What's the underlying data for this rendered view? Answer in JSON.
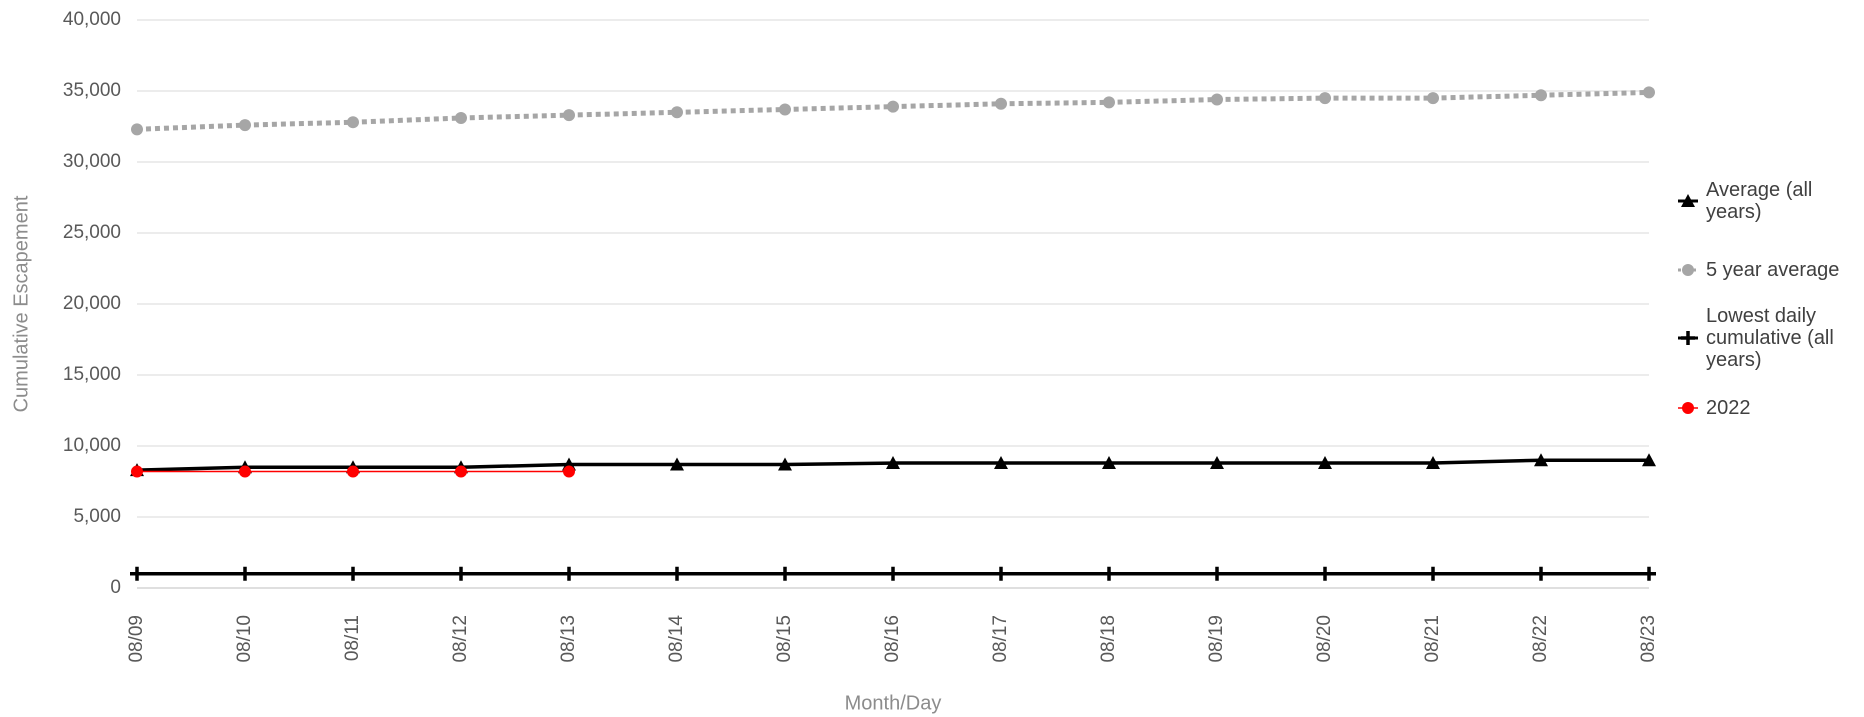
{
  "chart_data": {
    "type": "line",
    "y_label": "Cumulative Escapement",
    "x_label": "Month/Day",
    "categories": [
      "08/09",
      "08/10",
      "08/11",
      "08/12",
      "08/13",
      "08/14",
      "08/15",
      "08/16",
      "08/17",
      "08/18",
      "08/19",
      "08/20",
      "08/21",
      "08/22",
      "08/23"
    ],
    "series": [
      {
        "name": "Average (all years)",
        "color": "#000000",
        "marker": "triangle",
        "line_style": "solid",
        "values": [
          8300,
          8500,
          8500,
          8500,
          8700,
          8700,
          8700,
          8800,
          8800,
          8800,
          8800,
          8800,
          8800,
          9000,
          9000
        ]
      },
      {
        "name": "5 year average",
        "color": "#a6a6a6",
        "marker": "circle",
        "line_style": "dotted",
        "values": [
          32300,
          32600,
          32800,
          33100,
          33300,
          33500,
          33700,
          33900,
          34100,
          34200,
          34400,
          34500,
          34500,
          34700,
          34900
        ]
      },
      {
        "name": "Lowest daily cumulative (all years)",
        "color": "#000000",
        "marker": "plus",
        "line_style": "solid",
        "values": [
          1000,
          1000,
          1000,
          1000,
          1000,
          1000,
          1000,
          1000,
          1000,
          1000,
          1000,
          1000,
          1000,
          1000,
          1000
        ]
      },
      {
        "name": "2022",
        "color": "#ff0000",
        "marker": "circle",
        "line_style": "thin",
        "values": [
          8200,
          8200,
          8200,
          8200,
          8200,
          null,
          null,
          null,
          null,
          null,
          null,
          null,
          null,
          null,
          null
        ]
      }
    ],
    "ylim": [
      0,
      40000
    ],
    "yticks": [
      0,
      {
        "value": 5000,
        "label": "5,000"
      },
      {
        "value": 10000,
        "label": "10,000"
      },
      {
        "value": 15000,
        "label": "15,000"
      },
      {
        "value": 20000,
        "label": "20,000"
      },
      {
        "value": 25000,
        "label": "25,000"
      },
      {
        "value": 30000,
        "label": "30,000"
      },
      {
        "value": 35000,
        "label": "35,000"
      },
      {
        "value": 40000,
        "label": "40,000"
      }
    ],
    "grid": true,
    "legend": "right"
  }
}
